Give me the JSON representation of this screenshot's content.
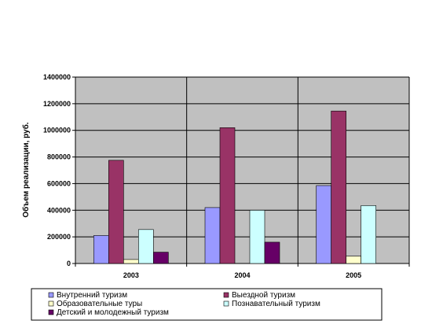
{
  "chart_data": {
    "type": "bar",
    "title": "",
    "xlabel": "",
    "ylabel": "Объем реализации, руб.",
    "categories": [
      "2003",
      "2004",
      "2005"
    ],
    "ylim": [
      0,
      1400000
    ],
    "yticks": [
      0,
      200000,
      400000,
      600000,
      800000,
      1000000,
      1200000,
      1400000
    ],
    "ytick_labels": [
      "0",
      "200000",
      "400000",
      "600000",
      "800000",
      "1000000",
      "1200000",
      "1400000"
    ],
    "grid": true,
    "legend_position": "bottom",
    "series": [
      {
        "name": "Внутренний туризм",
        "color": "#9999FF",
        "values": [
          210000,
          420000,
          585000
        ]
      },
      {
        "name": "Выездной туризм",
        "color": "#993366",
        "values": [
          775000,
          1020000,
          1145000
        ]
      },
      {
        "name": "Образовательные туры",
        "color": "#FFFFCC",
        "values": [
          30000,
          0,
          55000
        ]
      },
      {
        "name": "Познавательный туризм",
        "color": "#CCFFFF",
        "values": [
          255000,
          400000,
          435000
        ]
      },
      {
        "name": "Детский и молодежный туризм",
        "color": "#660066",
        "values": [
          85000,
          160000,
          0
        ]
      }
    ]
  }
}
